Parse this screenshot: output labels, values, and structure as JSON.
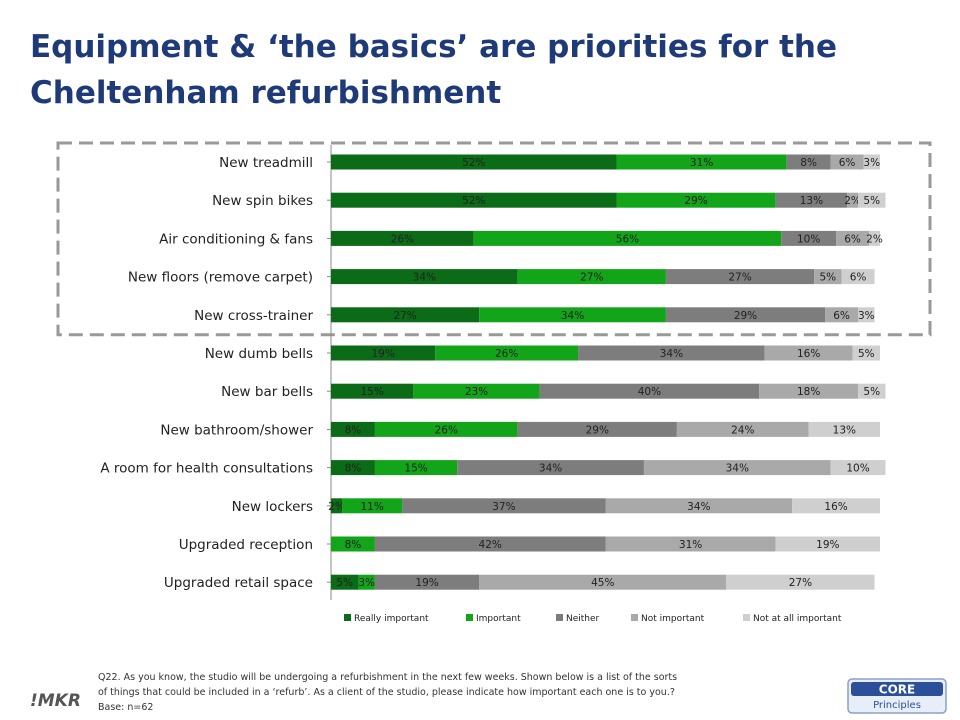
{
  "title": {
    "line1": "Equipment & ‘the basics’ are priorities for the",
    "line2": "Cheltenham refurbishment"
  },
  "colors": {
    "title": "#1f3a78",
    "highlight_border": "#999999"
  },
  "chart_data": {
    "type": "bar",
    "orientation": "horizontal",
    "stacked": "100%",
    "categories": [
      "New treadmill",
      "New spin bikes",
      "Air conditioning & fans",
      "New floors (remove carpet)",
      "New cross-trainer",
      "New dumb bells",
      "New bar bells",
      "New bathroom/shower",
      "A room for health consultations",
      "New lockers",
      "Upgraded reception",
      "Upgraded retail space"
    ],
    "series": [
      {
        "name": "Really important",
        "color": "#0b6b17",
        "values": [
          52,
          52,
          26,
          34,
          27,
          19,
          15,
          8,
          8,
          2,
          0,
          5
        ]
      },
      {
        "name": "Important",
        "color": "#12a51a",
        "values": [
          31,
          29,
          56,
          27,
          34,
          26,
          23,
          26,
          15,
          11,
          8,
          3
        ]
      },
      {
        "name": "Neither",
        "color": "#7d7d7d",
        "values": [
          8,
          13,
          10,
          27,
          29,
          34,
          40,
          29,
          34,
          37,
          42,
          19
        ]
      },
      {
        "name": "Not important",
        "color": "#a9a9a9",
        "values": [
          6,
          2,
          6,
          5,
          6,
          16,
          18,
          24,
          34,
          34,
          31,
          45
        ]
      },
      {
        "name": "Not at all important",
        "color": "#cfcfcf",
        "values": [
          3,
          5,
          2,
          6,
          3,
          5,
          5,
          13,
          10,
          16,
          19,
          27
        ]
      }
    ],
    "labels": [
      [
        "52%",
        "31%",
        "8%",
        "6%",
        "3%"
      ],
      [
        "52%",
        "29%",
        "13%",
        "2%",
        "5%"
      ],
      [
        "26%",
        "56%",
        "10%",
        "6%",
        "2%"
      ],
      [
        "34%",
        "27%",
        "27%",
        "5%",
        "6%"
      ],
      [
        "27%",
        "34%",
        "29%",
        "6%",
        "3%"
      ],
      [
        "19%",
        "26%",
        "34%",
        "16%",
        "5%"
      ],
      [
        "15%",
        "23%",
        "40%",
        "18%",
        "5%"
      ],
      [
        "8%",
        "26%",
        "29%",
        "24%",
        "13%"
      ],
      [
        "8%",
        "15%",
        "34%",
        "34%",
        "10%"
      ],
      [
        "2%",
        "11%",
        "37%",
        "34%",
        "16%"
      ],
      [
        "",
        "8%",
        "42%",
        "31%",
        "19%"
      ],
      [
        "5%",
        "3%",
        "19%",
        "45%",
        "27%"
      ]
    ],
    "xlim": [
      0,
      100
    ],
    "grid": false,
    "legend": "bottom",
    "highlighted_categories": [
      0,
      1,
      2,
      3,
      4
    ]
  },
  "footer": {
    "question_line1": "Q22. As you know, the studio will be undergoing a refurbishment in the next few weeks.  Shown below is a list of the sorts",
    "question_line2": "of things that could be included in a ‘refurb’. As a client of the studio, please indicate how important each one is to you.?",
    "base": "Base: n=62"
  },
  "logos": {
    "left_logo": "!MKR",
    "right_logo_top": "CORE",
    "right_logo_bottom": "Principles"
  }
}
